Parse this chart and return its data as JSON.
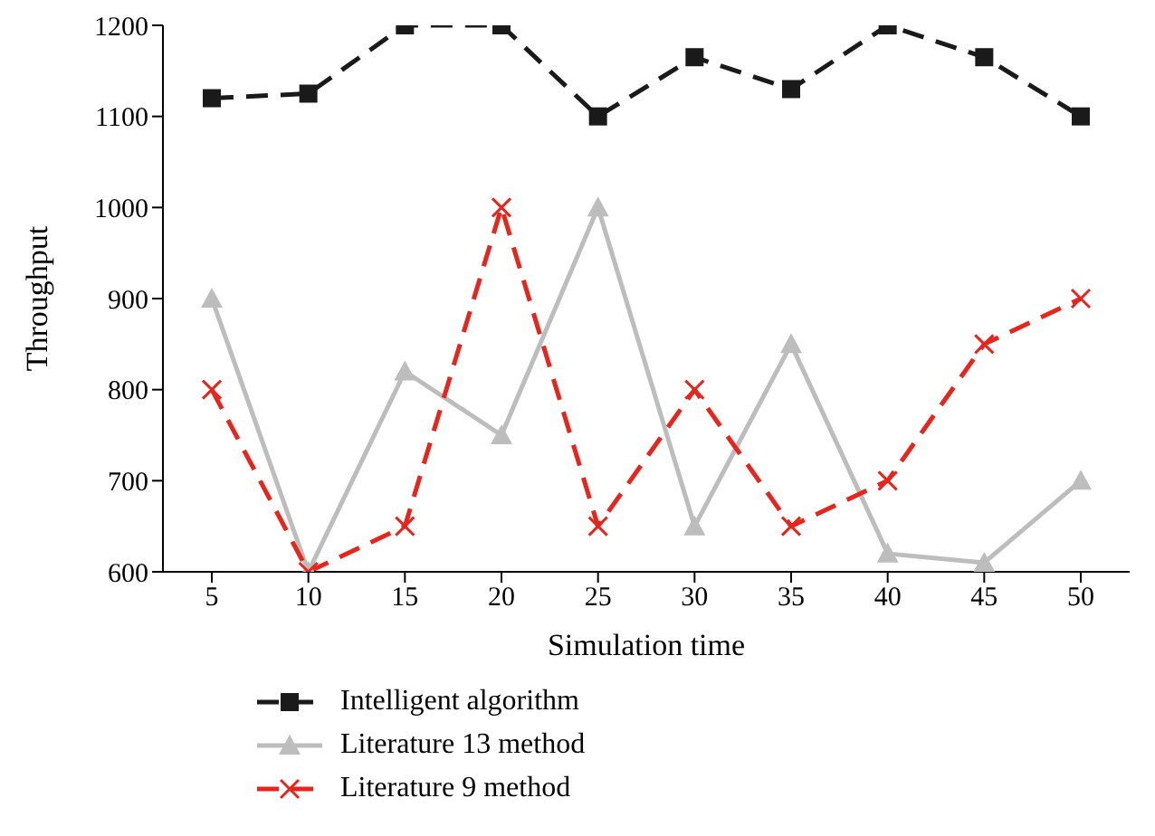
{
  "chart_data": {
    "type": "line",
    "xlabel": "Simulation time",
    "ylabel": "Throughput",
    "categories": [
      "5",
      "10",
      "15",
      "20",
      "25",
      "30",
      "35",
      "40",
      "45",
      "50"
    ],
    "ylim": [
      600,
      1200
    ],
    "yticks": [
      600,
      700,
      800,
      900,
      1000,
      1100,
      1200
    ],
    "grid": false,
    "legend": "bottom left",
    "series": [
      {
        "name": "Intelligent algorithm",
        "color": "#1a1a1a",
        "marker": "square",
        "line_style": "dashed",
        "values": [
          1120,
          1125,
          1200,
          1200,
          1100,
          1165,
          1130,
          1200,
          1165,
          1100
        ]
      },
      {
        "name": "Literature 13 method",
        "color": "#bdbdbd",
        "marker": "triangle",
        "line_style": "solid",
        "values": [
          900,
          600,
          820,
          750,
          1000,
          650,
          850,
          620,
          610,
          700
        ]
      },
      {
        "name": "Literature 9 method",
        "color": "#e8251c",
        "marker": "cross",
        "line_style": "dashed",
        "values": [
          800,
          600,
          650,
          1000,
          650,
          800,
          650,
          700,
          850,
          900
        ]
      }
    ]
  }
}
